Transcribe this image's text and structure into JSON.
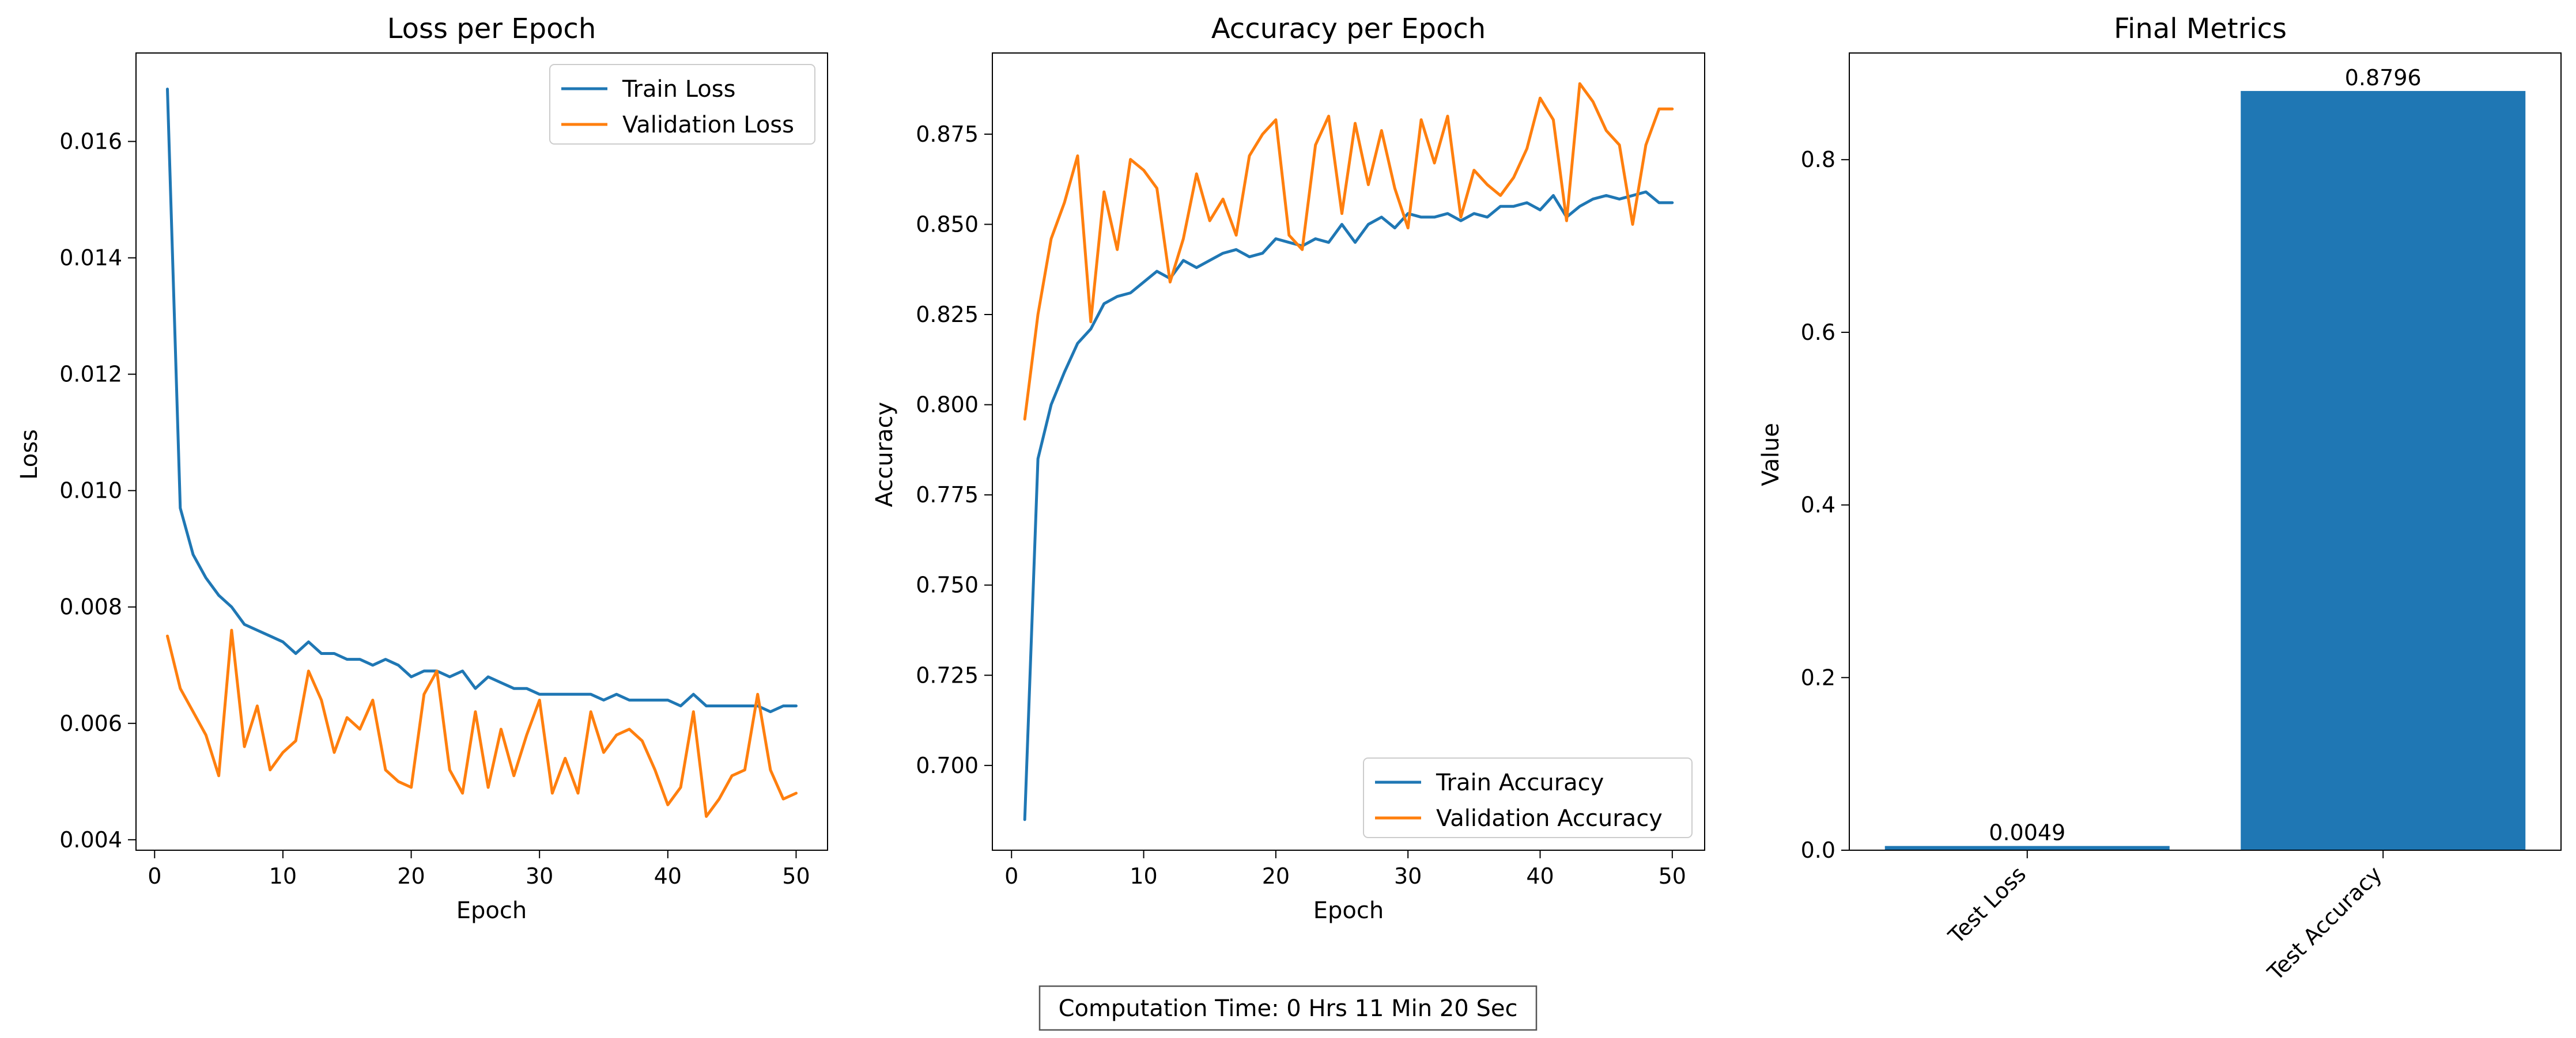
{
  "footer": {
    "text": "Computation Time: 0 Hrs 11 Min 20 Sec"
  },
  "colors": {
    "train": "#1f77b4",
    "validation": "#ff7f0e",
    "bar": "#1f77b4"
  },
  "chart_data": [
    {
      "type": "line",
      "title": "Loss per Epoch",
      "xlabel": "Epoch",
      "ylabel": "Loss",
      "xlim": [
        -1.45,
        52.45
      ],
      "ylim": [
        0.00382,
        0.01752
      ],
      "xticks": [
        0,
        10,
        20,
        30,
        40,
        50
      ],
      "yticks": [
        0.004,
        0.006,
        0.008,
        0.01,
        0.012,
        0.014,
        0.016
      ],
      "ytick_labels": [
        "0.004",
        "0.006",
        "0.008",
        "0.010",
        "0.012",
        "0.014",
        "0.016"
      ],
      "legend": "top-right",
      "grid": false,
      "x": [
        1,
        2,
        3,
        4,
        5,
        6,
        7,
        8,
        9,
        10,
        11,
        12,
        13,
        14,
        15,
        16,
        17,
        18,
        19,
        20,
        21,
        22,
        23,
        24,
        25,
        26,
        27,
        28,
        29,
        30,
        31,
        32,
        33,
        34,
        35,
        36,
        37,
        38,
        39,
        40,
        41,
        42,
        43,
        44,
        45,
        46,
        47,
        48,
        49,
        50
      ],
      "series": [
        {
          "name": "Train Loss",
          "color": "#1f77b4",
          "values": [
            0.0169,
            0.0097,
            0.0089,
            0.0085,
            0.0082,
            0.008,
            0.0077,
            0.0076,
            0.0075,
            0.0074,
            0.0072,
            0.0074,
            0.0072,
            0.0072,
            0.0071,
            0.0071,
            0.007,
            0.0071,
            0.007,
            0.0068,
            0.0069,
            0.0069,
            0.0068,
            0.0069,
            0.0066,
            0.0068,
            0.0067,
            0.0066,
            0.0066,
            0.0065,
            0.0065,
            0.0065,
            0.0065,
            0.0065,
            0.0064,
            0.0065,
            0.0064,
            0.0064,
            0.0064,
            0.0064,
            0.0063,
            0.0065,
            0.0063,
            0.0063,
            0.0063,
            0.0063,
            0.0063,
            0.0062,
            0.0063,
            0.0063
          ]
        },
        {
          "name": "Validation Loss",
          "color": "#ff7f0e",
          "values": [
            0.0075,
            0.0066,
            0.0062,
            0.0058,
            0.0051,
            0.0076,
            0.0056,
            0.0063,
            0.0052,
            0.0055,
            0.0057,
            0.0069,
            0.0064,
            0.0055,
            0.0061,
            0.0059,
            0.0064,
            0.0052,
            0.005,
            0.0049,
            0.0065,
            0.0069,
            0.0052,
            0.0048,
            0.0062,
            0.0049,
            0.0059,
            0.0051,
            0.0058,
            0.0064,
            0.0048,
            0.0054,
            0.0048,
            0.0062,
            0.0055,
            0.0058,
            0.0059,
            0.0057,
            0.0052,
            0.0046,
            0.0049,
            0.0062,
            0.0044,
            0.0047,
            0.0051,
            0.0052,
            0.0065,
            0.0052,
            0.0047,
            0.0048
          ]
        }
      ]
    },
    {
      "type": "line",
      "title": "Accuracy per Epoch",
      "xlabel": "Epoch",
      "ylabel": "Accuracy",
      "xlim": [
        -1.45,
        52.45
      ],
      "ylim": [
        0.6765,
        0.8975
      ],
      "xticks": [
        0,
        10,
        20,
        30,
        40,
        50
      ],
      "yticks": [
        0.7,
        0.725,
        0.75,
        0.775,
        0.8,
        0.825,
        0.85,
        0.875
      ],
      "ytick_labels": [
        "0.700",
        "0.725",
        "0.750",
        "0.775",
        "0.800",
        "0.825",
        "0.850",
        "0.875"
      ],
      "legend": "bottom-right",
      "grid": false,
      "x": [
        1,
        2,
        3,
        4,
        5,
        6,
        7,
        8,
        9,
        10,
        11,
        12,
        13,
        14,
        15,
        16,
        17,
        18,
        19,
        20,
        21,
        22,
        23,
        24,
        25,
        26,
        27,
        28,
        29,
        30,
        31,
        32,
        33,
        34,
        35,
        36,
        37,
        38,
        39,
        40,
        41,
        42,
        43,
        44,
        45,
        46,
        47,
        48,
        49,
        50
      ],
      "series": [
        {
          "name": "Train Accuracy",
          "color": "#1f77b4",
          "values": [
            0.685,
            0.785,
            0.8,
            0.809,
            0.817,
            0.821,
            0.828,
            0.83,
            0.831,
            0.834,
            0.837,
            0.835,
            0.84,
            0.838,
            0.84,
            0.842,
            0.843,
            0.841,
            0.842,
            0.846,
            0.845,
            0.844,
            0.846,
            0.845,
            0.85,
            0.845,
            0.85,
            0.852,
            0.849,
            0.853,
            0.852,
            0.852,
            0.853,
            0.851,
            0.853,
            0.852,
            0.855,
            0.855,
            0.856,
            0.854,
            0.858,
            0.852,
            0.855,
            0.857,
            0.858,
            0.857,
            0.858,
            0.859,
            0.856,
            0.856
          ]
        },
        {
          "name": "Validation Accuracy",
          "color": "#ff7f0e",
          "values": [
            0.796,
            0.825,
            0.846,
            0.856,
            0.869,
            0.823,
            0.859,
            0.843,
            0.868,
            0.865,
            0.86,
            0.834,
            0.846,
            0.864,
            0.851,
            0.857,
            0.847,
            0.869,
            0.875,
            0.879,
            0.847,
            0.843,
            0.872,
            0.88,
            0.853,
            0.878,
            0.861,
            0.876,
            0.86,
            0.849,
            0.879,
            0.867,
            0.88,
            0.852,
            0.865,
            0.861,
            0.858,
            0.863,
            0.871,
            0.885,
            0.879,
            0.851,
            0.889,
            0.884,
            0.876,
            0.872,
            0.85,
            0.872,
            0.882,
            0.882
          ]
        }
      ]
    },
    {
      "type": "bar",
      "title": "Final Metrics",
      "xlabel": "",
      "ylabel": "Value",
      "ylim": [
        0,
        0.9236
      ],
      "yticks": [
        0.0,
        0.2,
        0.4,
        0.6,
        0.8
      ],
      "ytick_labels": [
        "0.0",
        "0.2",
        "0.4",
        "0.6",
        "0.8"
      ],
      "categories": [
        "Test Loss",
        "Test Accuracy"
      ],
      "values": [
        0.0049,
        0.8796
      ],
      "value_labels": [
        "0.0049",
        "0.8796"
      ],
      "grid": false
    }
  ]
}
